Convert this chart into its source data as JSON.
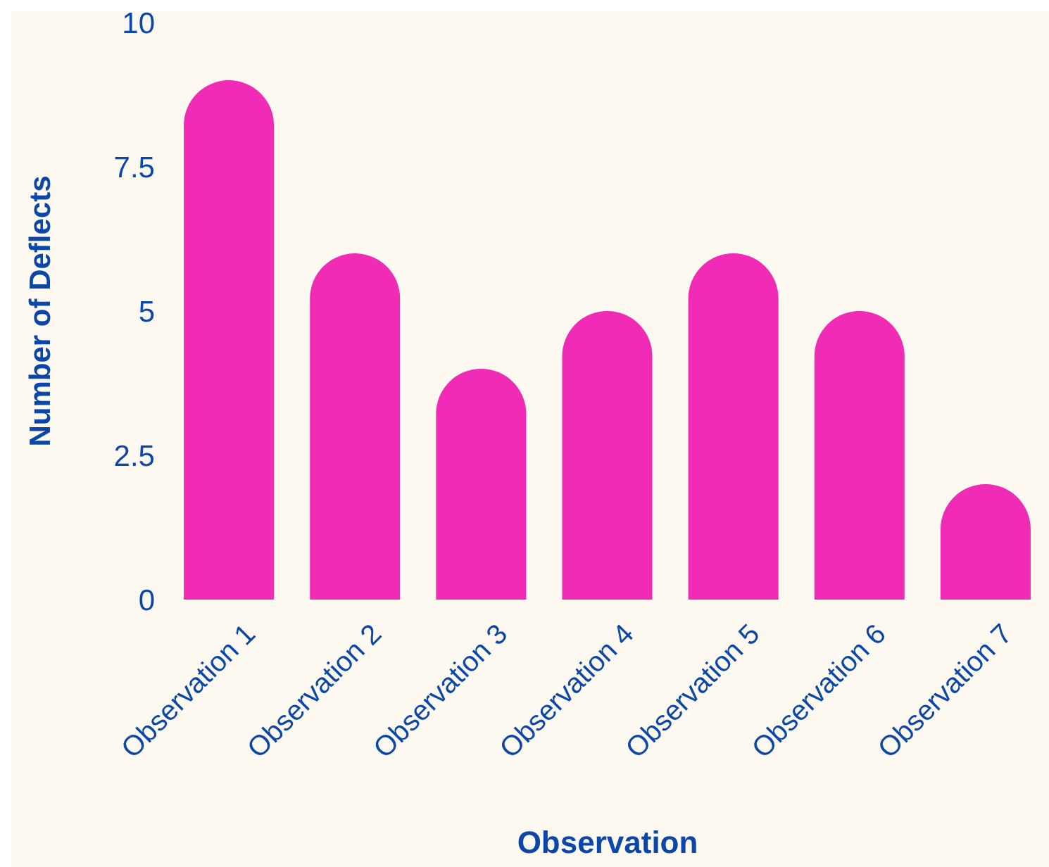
{
  "chart_data": {
    "type": "bar",
    "xlabel": "Observation",
    "ylabel": "Number of Deflects",
    "categories": [
      "Observation 1",
      "Observation 2",
      "Observation 3",
      "Observation 4",
      "Observation 5",
      "Observation 6",
      "Observation 7"
    ],
    "values": [
      9,
      6,
      4,
      5,
      6,
      5,
      2
    ],
    "color": "#f02bb5",
    "ylim": [
      0,
      10
    ],
    "yticks": [
      0,
      2.5,
      5,
      7.5,
      10
    ],
    "grid": false
  }
}
